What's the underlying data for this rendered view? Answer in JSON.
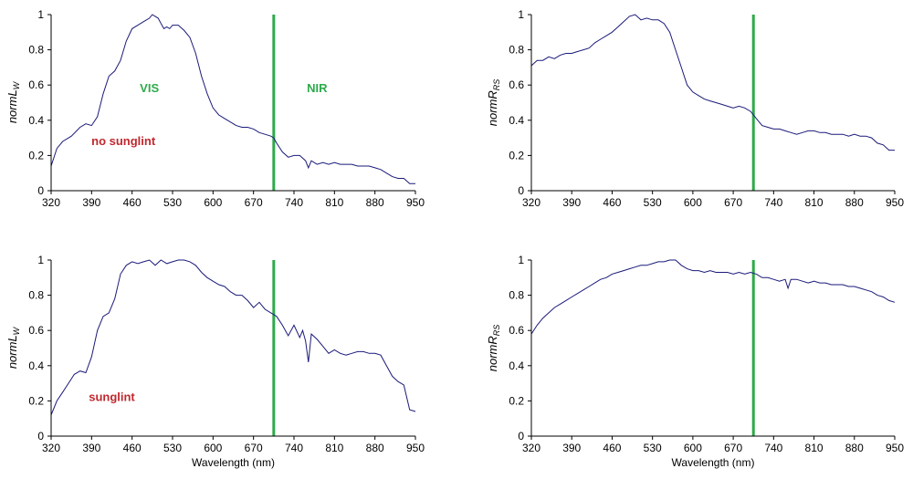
{
  "chart_data": [
    {
      "type": "line",
      "panel": "top-left",
      "ylabel_main": "normL",
      "ylabel_sub": "W",
      "xlabel": "",
      "xlim": [
        320,
        950
      ],
      "ylim": [
        0,
        1
      ],
      "xticks": [
        320,
        390,
        460,
        530,
        600,
        670,
        740,
        810,
        880,
        950
      ],
      "yticks": [
        0,
        0.2,
        0.4,
        0.6,
        0.8,
        1
      ],
      "divider_x": 705,
      "line_color": "#1a1a7a",
      "divider_color": "#2eaa4a",
      "annotations": [
        {
          "text": "VIS",
          "x": 490,
          "y": 0.56,
          "color": "#2eaa4a"
        },
        {
          "text": "NIR",
          "x": 780,
          "y": 0.56,
          "color": "#2eaa4a"
        },
        {
          "text": "no sunglint",
          "x": 445,
          "y": 0.26,
          "color": "#c0282e"
        }
      ],
      "series": [
        {
          "name": "normLw (no sunglint)",
          "x": [
            320,
            330,
            340,
            355,
            370,
            380,
            390,
            400,
            410,
            420,
            430,
            440,
            450,
            460,
            470,
            480,
            490,
            495,
            500,
            505,
            510,
            515,
            520,
            525,
            530,
            540,
            550,
            560,
            570,
            580,
            590,
            600,
            610,
            620,
            630,
            640,
            650,
            660,
            670,
            680,
            690,
            700,
            705,
            710,
            720,
            730,
            740,
            750,
            760,
            765,
            770,
            780,
            790,
            800,
            810,
            820,
            830,
            840,
            850,
            860,
            870,
            880,
            890,
            900,
            910,
            920,
            930,
            940,
            950
          ],
          "y": [
            0.14,
            0.24,
            0.28,
            0.31,
            0.36,
            0.38,
            0.37,
            0.42,
            0.55,
            0.65,
            0.68,
            0.74,
            0.85,
            0.92,
            0.94,
            0.96,
            0.98,
            1.0,
            0.99,
            0.98,
            0.95,
            0.92,
            0.93,
            0.92,
            0.94,
            0.94,
            0.91,
            0.87,
            0.78,
            0.65,
            0.55,
            0.47,
            0.43,
            0.41,
            0.39,
            0.37,
            0.36,
            0.36,
            0.35,
            0.33,
            0.32,
            0.31,
            0.3,
            0.27,
            0.22,
            0.19,
            0.2,
            0.2,
            0.17,
            0.13,
            0.17,
            0.15,
            0.16,
            0.15,
            0.16,
            0.15,
            0.15,
            0.15,
            0.14,
            0.14,
            0.14,
            0.13,
            0.12,
            0.1,
            0.08,
            0.07,
            0.07,
            0.04,
            0.04
          ]
        }
      ]
    },
    {
      "type": "line",
      "panel": "top-right",
      "ylabel_main": "normR",
      "ylabel_sub": "RS",
      "xlabel": "",
      "xlim": [
        320,
        950
      ],
      "ylim": [
        0,
        1
      ],
      "xticks": [
        320,
        390,
        460,
        530,
        600,
        670,
        740,
        810,
        880,
        950
      ],
      "yticks": [
        0,
        0.2,
        0.4,
        0.6,
        0.8,
        1
      ],
      "divider_x": 705,
      "line_color": "#1a1a7a",
      "divider_color": "#2eaa4a",
      "annotations": [],
      "series": [
        {
          "name": "normRrs (no sunglint)",
          "x": [
            320,
            330,
            340,
            350,
            360,
            370,
            380,
            390,
            400,
            410,
            420,
            430,
            440,
            450,
            460,
            470,
            480,
            490,
            500,
            510,
            520,
            530,
            540,
            550,
            560,
            570,
            580,
            590,
            600,
            610,
            620,
            630,
            640,
            650,
            660,
            670,
            680,
            690,
            700,
            710,
            720,
            730,
            740,
            750,
            760,
            770,
            780,
            790,
            800,
            810,
            820,
            830,
            840,
            850,
            860,
            870,
            880,
            890,
            900,
            910,
            920,
            930,
            940,
            950
          ],
          "y": [
            0.71,
            0.74,
            0.74,
            0.76,
            0.75,
            0.77,
            0.78,
            0.78,
            0.79,
            0.8,
            0.81,
            0.84,
            0.86,
            0.88,
            0.9,
            0.93,
            0.96,
            0.99,
            1.0,
            0.97,
            0.98,
            0.97,
            0.97,
            0.95,
            0.9,
            0.8,
            0.7,
            0.6,
            0.56,
            0.54,
            0.52,
            0.51,
            0.5,
            0.49,
            0.48,
            0.47,
            0.48,
            0.47,
            0.45,
            0.41,
            0.37,
            0.36,
            0.35,
            0.35,
            0.34,
            0.33,
            0.32,
            0.33,
            0.34,
            0.34,
            0.33,
            0.33,
            0.32,
            0.32,
            0.32,
            0.31,
            0.32,
            0.31,
            0.31,
            0.3,
            0.27,
            0.26,
            0.23,
            0.23
          ]
        }
      ]
    },
    {
      "type": "line",
      "panel": "bottom-left",
      "ylabel_main": "normL",
      "ylabel_sub": "W",
      "xlabel": "Wavelength (nm)",
      "xlim": [
        320,
        950
      ],
      "ylim": [
        0,
        1
      ],
      "xticks": [
        320,
        390,
        460,
        530,
        600,
        670,
        740,
        810,
        880,
        950
      ],
      "yticks": [
        0,
        0.2,
        0.4,
        0.6,
        0.8,
        1
      ],
      "divider_x": 705,
      "line_color": "#1a1a7a",
      "divider_color": "#2eaa4a",
      "annotations": [
        {
          "text": "sunglint",
          "x": 425,
          "y": 0.2,
          "color": "#c0282e"
        }
      ],
      "series": [
        {
          "name": "normLw (sunglint)",
          "x": [
            320,
            330,
            340,
            350,
            360,
            370,
            380,
            390,
            400,
            410,
            420,
            430,
            440,
            450,
            460,
            470,
            480,
            490,
            500,
            510,
            520,
            530,
            540,
            550,
            560,
            570,
            580,
            590,
            600,
            610,
            620,
            630,
            640,
            650,
            660,
            670,
            680,
            690,
            700,
            705,
            710,
            720,
            730,
            740,
            750,
            755,
            760,
            765,
            770,
            780,
            790,
            800,
            810,
            820,
            830,
            840,
            850,
            860,
            870,
            880,
            890,
            900,
            910,
            920,
            930,
            940,
            950
          ],
          "y": [
            0.12,
            0.2,
            0.25,
            0.3,
            0.35,
            0.37,
            0.36,
            0.45,
            0.6,
            0.68,
            0.7,
            0.78,
            0.92,
            0.97,
            0.99,
            0.98,
            0.99,
            1.0,
            0.97,
            1.0,
            0.98,
            0.99,
            1.0,
            1.0,
            0.99,
            0.97,
            0.93,
            0.9,
            0.88,
            0.86,
            0.85,
            0.82,
            0.8,
            0.8,
            0.77,
            0.73,
            0.76,
            0.72,
            0.7,
            0.69,
            0.68,
            0.63,
            0.57,
            0.63,
            0.56,
            0.6,
            0.54,
            0.42,
            0.58,
            0.55,
            0.51,
            0.47,
            0.49,
            0.47,
            0.46,
            0.47,
            0.48,
            0.48,
            0.47,
            0.47,
            0.46,
            0.4,
            0.34,
            0.31,
            0.29,
            0.15,
            0.14
          ]
        }
      ]
    },
    {
      "type": "line",
      "panel": "bottom-right",
      "ylabel_main": "normR",
      "ylabel_sub": "RS",
      "xlabel": "Wavelength (nm)",
      "xlim": [
        320,
        950
      ],
      "ylim": [
        0,
        1
      ],
      "xticks": [
        320,
        390,
        460,
        530,
        600,
        670,
        740,
        810,
        880,
        950
      ],
      "yticks": [
        0,
        0.2,
        0.4,
        0.6,
        0.8,
        1
      ],
      "divider_x": 705,
      "line_color": "#1a1a7a",
      "divider_color": "#2eaa4a",
      "annotations": [],
      "series": [
        {
          "name": "normRrs (sunglint)",
          "x": [
            320,
            330,
            340,
            350,
            360,
            370,
            380,
            390,
            400,
            410,
            420,
            430,
            440,
            450,
            460,
            470,
            480,
            490,
            500,
            510,
            520,
            530,
            540,
            550,
            560,
            570,
            580,
            590,
            600,
            610,
            620,
            630,
            640,
            650,
            660,
            670,
            680,
            690,
            700,
            710,
            720,
            730,
            740,
            750,
            760,
            765,
            770,
            780,
            790,
            800,
            810,
            820,
            830,
            840,
            850,
            860,
            870,
            880,
            890,
            900,
            910,
            920,
            930,
            940,
            950
          ],
          "y": [
            0.58,
            0.63,
            0.67,
            0.7,
            0.73,
            0.75,
            0.77,
            0.79,
            0.81,
            0.83,
            0.85,
            0.87,
            0.89,
            0.9,
            0.92,
            0.93,
            0.94,
            0.95,
            0.96,
            0.97,
            0.97,
            0.98,
            0.99,
            0.99,
            1.0,
            1.0,
            0.97,
            0.95,
            0.94,
            0.94,
            0.93,
            0.94,
            0.93,
            0.93,
            0.93,
            0.92,
            0.93,
            0.92,
            0.93,
            0.92,
            0.9,
            0.9,
            0.89,
            0.88,
            0.89,
            0.84,
            0.89,
            0.89,
            0.88,
            0.87,
            0.88,
            0.87,
            0.87,
            0.86,
            0.86,
            0.86,
            0.85,
            0.85,
            0.84,
            0.83,
            0.82,
            0.8,
            0.79,
            0.77,
            0.76
          ]
        }
      ]
    }
  ]
}
